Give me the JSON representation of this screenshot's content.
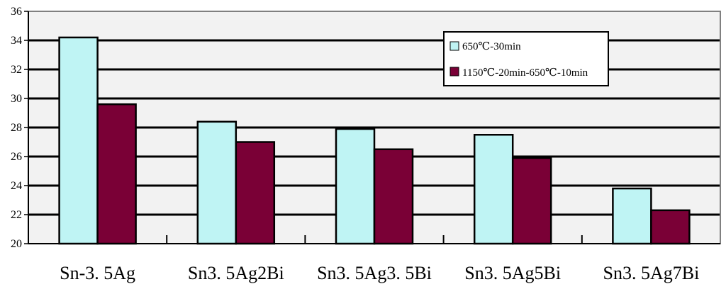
{
  "chart_data": {
    "type": "bar",
    "title": "",
    "xlabel": "",
    "ylabel": "",
    "categories": [
      "Sn-3. 5Ag",
      "Sn3. 5Ag2Bi",
      "Sn3. 5Ag3. 5Bi",
      "Sn3. 5Ag5Bi",
      "Sn3. 5Ag7Bi"
    ],
    "series": [
      {
        "name": "650℃-30min",
        "values": [
          34.2,
          28.4,
          27.9,
          27.5,
          23.8
        ],
        "color": "#bff4f4"
      },
      {
        "name": "1150℃-20min-650℃-10min",
        "values": [
          29.6,
          27.0,
          26.5,
          25.9,
          22.3
        ],
        "color": "#7a0036"
      }
    ],
    "ylim": [
      20,
      36
    ],
    "yticks": [
      20,
      22,
      24,
      26,
      28,
      30,
      32,
      34,
      36
    ],
    "grid": true,
    "legend_position": "top-right",
    "plot_background": "#f2f2f2"
  }
}
